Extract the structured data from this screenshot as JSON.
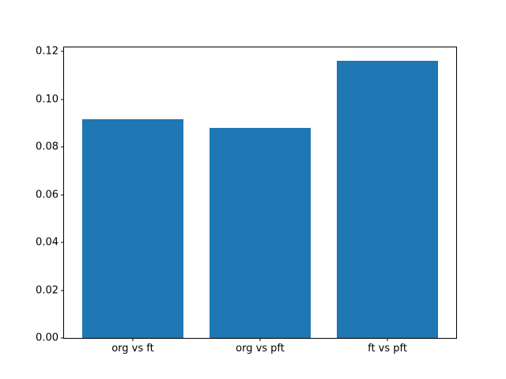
{
  "chart_data": {
    "type": "bar",
    "title": "",
    "xlabel": "",
    "ylabel": "",
    "categories": [
      "org vs ft",
      "org vs pft",
      "ft vs pft"
    ],
    "values": [
      0.0918,
      0.0879,
      0.1163
    ],
    "yticks": [
      0.0,
      0.02,
      0.04,
      0.06,
      0.08,
      0.1,
      0.12
    ],
    "ytick_labels": [
      "0.00",
      "0.02",
      "0.04",
      "0.06",
      "0.08",
      "0.10",
      "0.12"
    ],
    "ylim": [
      0,
      0.1218
    ],
    "xlim": [
      -0.54,
      2.54
    ],
    "bar_width_fraction": 0.8,
    "grid": false,
    "legend": "none",
    "bar_color": "#1f77b4",
    "background_color": "#ffffff",
    "spine_color": "#000000"
  }
}
